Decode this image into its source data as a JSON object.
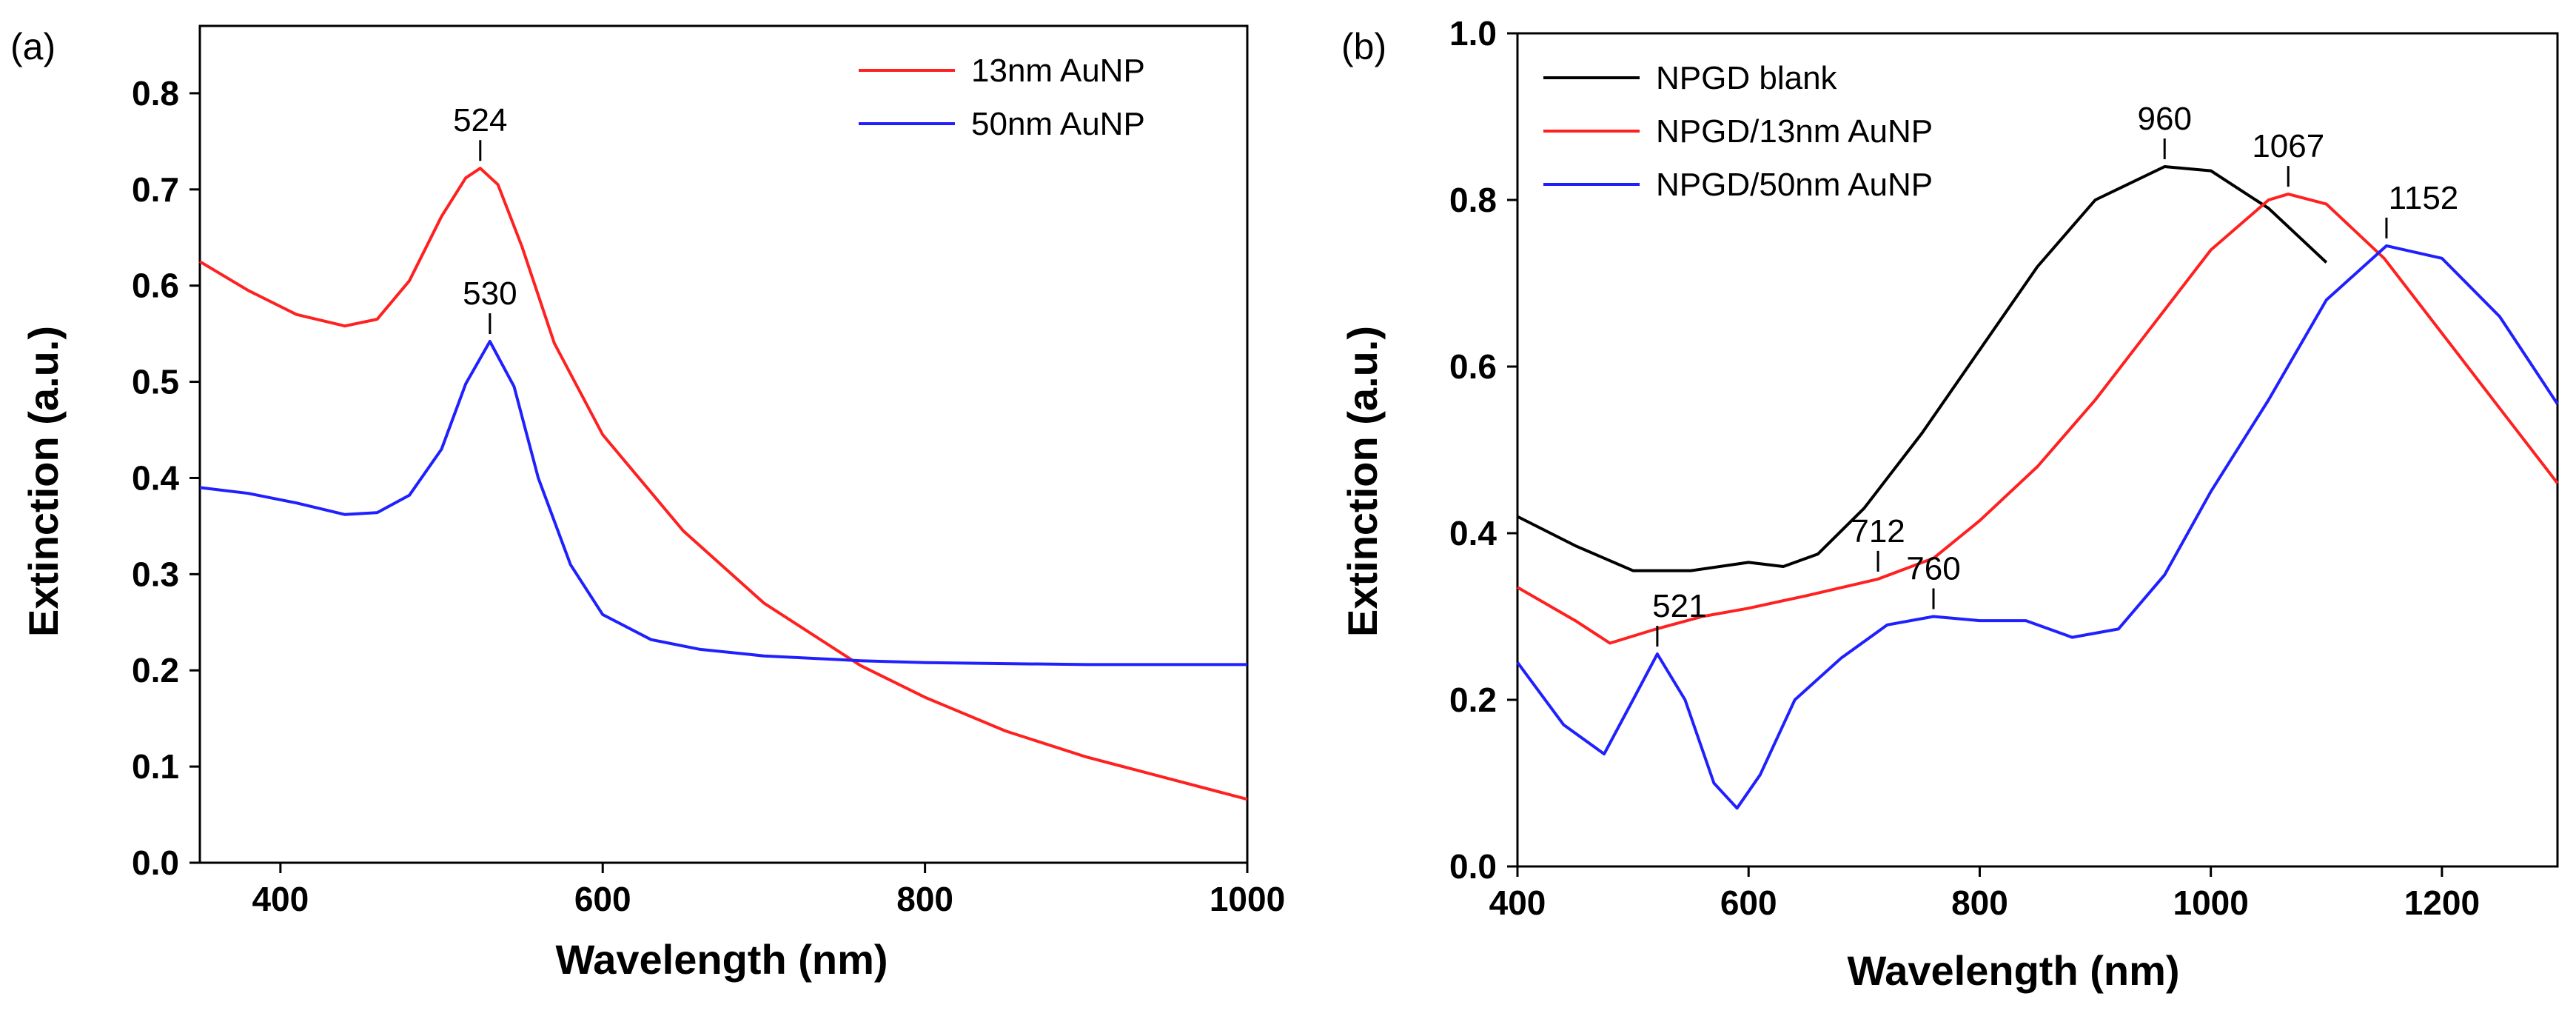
{
  "chart_data": [
    {
      "panel": "(a)",
      "type": "line",
      "xlabel": "Wavelength (nm)",
      "ylabel": "Extinction (a.u.)",
      "xlim": [
        350,
        1000
      ],
      "ylim": [
        0,
        0.87
      ],
      "xticks": [
        400,
        600,
        800,
        1000
      ],
      "yticks": [
        0.0,
        0.1,
        0.2,
        0.3,
        0.4,
        0.5,
        0.6,
        0.7,
        0.8
      ],
      "ytick_labels": [
        "0.0",
        "0.1",
        "0.2",
        "0.3",
        "0.4",
        "0.5",
        "0.6",
        "0.7",
        "0.8"
      ],
      "legend_position": "top-right",
      "series": [
        {
          "name": "13nm AuNP",
          "color": "#ff2020",
          "x": [
            350,
            380,
            410,
            440,
            460,
            480,
            500,
            515,
            524,
            535,
            550,
            570,
            600,
            650,
            700,
            760,
            800,
            850,
            900,
            950,
            1000
          ],
          "y": [
            0.625,
            0.595,
            0.57,
            0.558,
            0.565,
            0.605,
            0.672,
            0.712,
            0.722,
            0.705,
            0.64,
            0.54,
            0.445,
            0.345,
            0.27,
            0.205,
            0.172,
            0.137,
            0.11,
            0.088,
            0.066
          ]
        },
        {
          "name": "50nm AuNP",
          "color": "#2020ff",
          "x": [
            350,
            380,
            410,
            440,
            460,
            480,
            500,
            515,
            530,
            545,
            560,
            580,
            600,
            630,
            660,
            700,
            760,
            800,
            850,
            900,
            950,
            1000
          ],
          "y": [
            0.39,
            0.384,
            0.374,
            0.362,
            0.364,
            0.382,
            0.43,
            0.498,
            0.542,
            0.495,
            0.4,
            0.31,
            0.258,
            0.232,
            0.222,
            0.215,
            0.21,
            0.208,
            0.207,
            0.206,
            0.206,
            0.206
          ]
        }
      ],
      "annotations": [
        {
          "text": "524",
          "x": 524,
          "y": 0.722
        },
        {
          "text": "530",
          "x": 530,
          "y": 0.542
        }
      ]
    },
    {
      "panel": "(b)",
      "type": "line",
      "xlabel": "Wavelength (nm)",
      "ylabel": "Extinction (a.u.)",
      "xlim": [
        400,
        1300
      ],
      "ylim": [
        0,
        1.0
      ],
      "xticks": [
        400,
        600,
        800,
        1000,
        1200
      ],
      "yticks": [
        0.0,
        0.2,
        0.4,
        0.6,
        0.8,
        1.0
      ],
      "ytick_labels": [
        "0.0",
        "0.2",
        "0.4",
        "0.6",
        "0.8",
        "1.0"
      ],
      "legend_position": "top-left",
      "series": [
        {
          "name": "NPGD blank",
          "color": "#000000",
          "x": [
            400,
            450,
            500,
            550,
            600,
            630,
            660,
            700,
            750,
            800,
            850,
            900,
            960,
            1000,
            1050,
            1100
          ],
          "y": [
            0.42,
            0.385,
            0.355,
            0.355,
            0.365,
            0.36,
            0.375,
            0.43,
            0.52,
            0.62,
            0.72,
            0.8,
            0.84,
            0.835,
            0.79,
            0.725
          ]
        },
        {
          "name": "NPGD/13nm AuNP",
          "color": "#ff2020",
          "x": [
            400,
            450,
            480,
            520,
            560,
            600,
            650,
            712,
            760,
            800,
            850,
            900,
            950,
            1000,
            1050,
            1067,
            1100,
            1150,
            1200,
            1250,
            1300
          ],
          "y": [
            0.335,
            0.295,
            0.268,
            0.285,
            0.3,
            0.31,
            0.325,
            0.345,
            0.37,
            0.415,
            0.48,
            0.56,
            0.65,
            0.74,
            0.8,
            0.807,
            0.795,
            0.73,
            0.64,
            0.55,
            0.46
          ]
        },
        {
          "name": "NPGD/50nm AuNP",
          "color": "#2020ff",
          "x": [
            400,
            440,
            475,
            500,
            521,
            545,
            570,
            590,
            610,
            640,
            680,
            720,
            760,
            800,
            840,
            880,
            920,
            960,
            1000,
            1050,
            1100,
            1152,
            1200,
            1250,
            1300
          ],
          "y": [
            0.245,
            0.17,
            0.135,
            0.2,
            0.255,
            0.2,
            0.1,
            0.07,
            0.11,
            0.2,
            0.25,
            0.29,
            0.3,
            0.295,
            0.295,
            0.275,
            0.285,
            0.35,
            0.45,
            0.56,
            0.68,
            0.745,
            0.73,
            0.66,
            0.555
          ]
        }
      ],
      "annotations": [
        {
          "text": "960",
          "x": 960,
          "y": 0.84
        },
        {
          "text": "1067",
          "x": 1067,
          "y": 0.807
        },
        {
          "text": "1152",
          "x": 1152,
          "y": 0.745
        },
        {
          "text": "712",
          "x": 712,
          "y": 0.345
        },
        {
          "text": "760",
          "x": 760,
          "y": 0.3
        },
        {
          "text": "521",
          "x": 521,
          "y": 0.255
        }
      ]
    }
  ]
}
